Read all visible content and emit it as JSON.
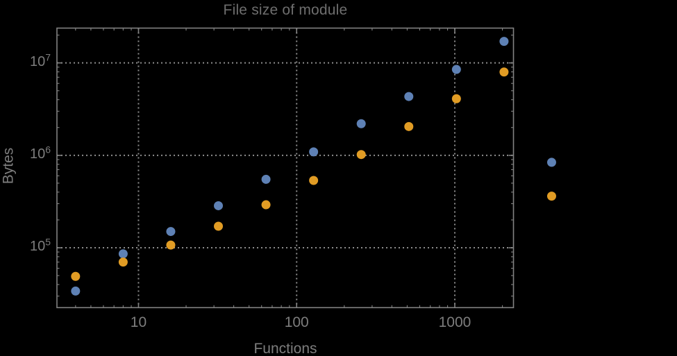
{
  "chart_data": {
    "type": "scatter",
    "title": "File size of module",
    "xlabel": "Functions",
    "ylabel": "Bytes",
    "x_scale": "log",
    "y_scale": "log",
    "xlim": [
      3.05,
      2350
    ],
    "ylim": [
      22500,
      23800000
    ],
    "x_ticks": [
      10,
      100,
      1000
    ],
    "y_ticks": [
      100000,
      1000000,
      10000000
    ],
    "grid": "dotted",
    "legend_position": "none",
    "frame": true,
    "series": [
      {
        "name": "blue",
        "color": "#5e81b5",
        "marker": "filled-circle",
        "points": [
          [
            4,
            34000
          ],
          [
            8,
            86000
          ],
          [
            16,
            150000
          ],
          [
            32,
            285000
          ],
          [
            64,
            550000
          ],
          [
            128,
            1090000
          ],
          [
            256,
            2200000
          ],
          [
            512,
            4330000
          ],
          [
            1024,
            8500000
          ],
          [
            2048,
            17100000
          ],
          [
            4096,
            840000
          ]
        ]
      },
      {
        "name": "orange",
        "color": "#e19c24",
        "marker": "filled-circle",
        "points": [
          [
            4,
            49000
          ],
          [
            8,
            70000
          ],
          [
            16,
            107000
          ],
          [
            32,
            171000
          ],
          [
            64,
            292000
          ],
          [
            128,
            535000
          ],
          [
            256,
            1020000
          ],
          [
            512,
            2050000
          ],
          [
            1024,
            4100000
          ],
          [
            2048,
            7970000
          ],
          [
            4096,
            362000
          ]
        ]
      }
    ]
  },
  "style": {
    "background": "#000000",
    "title_color": "#6e6e6e",
    "axis_label_color": "#7d7d7d",
    "tick_label_color": "#7d7d7d",
    "frame_color": "#828282",
    "grid_color": "#8e8e8e"
  }
}
